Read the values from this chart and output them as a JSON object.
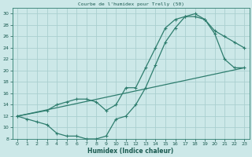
{
  "title": "Courbe de l'humidex pour Trelly (50)",
  "xlabel": "Humidex (Indice chaleur)",
  "bg_color": "#cce8e8",
  "grid_color": "#aacfcf",
  "line_color": "#2e7d6e",
  "text_color": "#1a5a50",
  "xlim": [
    -0.5,
    23.5
  ],
  "ylim": [
    8,
    31
  ],
  "xticks": [
    0,
    1,
    2,
    3,
    4,
    5,
    6,
    7,
    8,
    9,
    10,
    11,
    12,
    13,
    14,
    15,
    16,
    17,
    18,
    19,
    20,
    21,
    22,
    23
  ],
  "yticks": [
    8,
    10,
    12,
    14,
    16,
    18,
    20,
    22,
    24,
    26,
    28,
    30
  ],
  "line1_x": [
    0,
    1,
    2,
    3,
    4,
    5,
    6,
    7,
    8,
    9,
    10,
    11,
    12,
    13,
    14,
    15,
    16,
    17,
    18,
    19,
    20,
    21,
    22,
    23
  ],
  "line1_y": [
    12,
    11.5,
    11,
    10.5,
    9,
    8.5,
    8.5,
    8,
    8,
    8.5,
    11.5,
    12,
    14,
    17,
    21,
    25,
    27.5,
    29.5,
    29.5,
    29,
    27,
    26,
    25,
    24
  ],
  "line2_x": [
    0,
    3,
    4,
    5,
    6,
    7,
    8,
    9,
    10,
    11,
    12,
    13,
    14,
    15,
    16,
    17,
    18,
    19,
    20,
    21,
    22,
    23
  ],
  "line2_y": [
    12,
    13,
    14,
    14.5,
    15,
    15,
    14.5,
    13,
    14,
    17,
    17,
    20.5,
    24,
    27.5,
    29,
    29.5,
    30,
    29,
    26.5,
    22,
    20.5,
    20.5
  ],
  "line3_x": [
    0,
    23
  ],
  "line3_y": [
    12,
    20.5
  ]
}
